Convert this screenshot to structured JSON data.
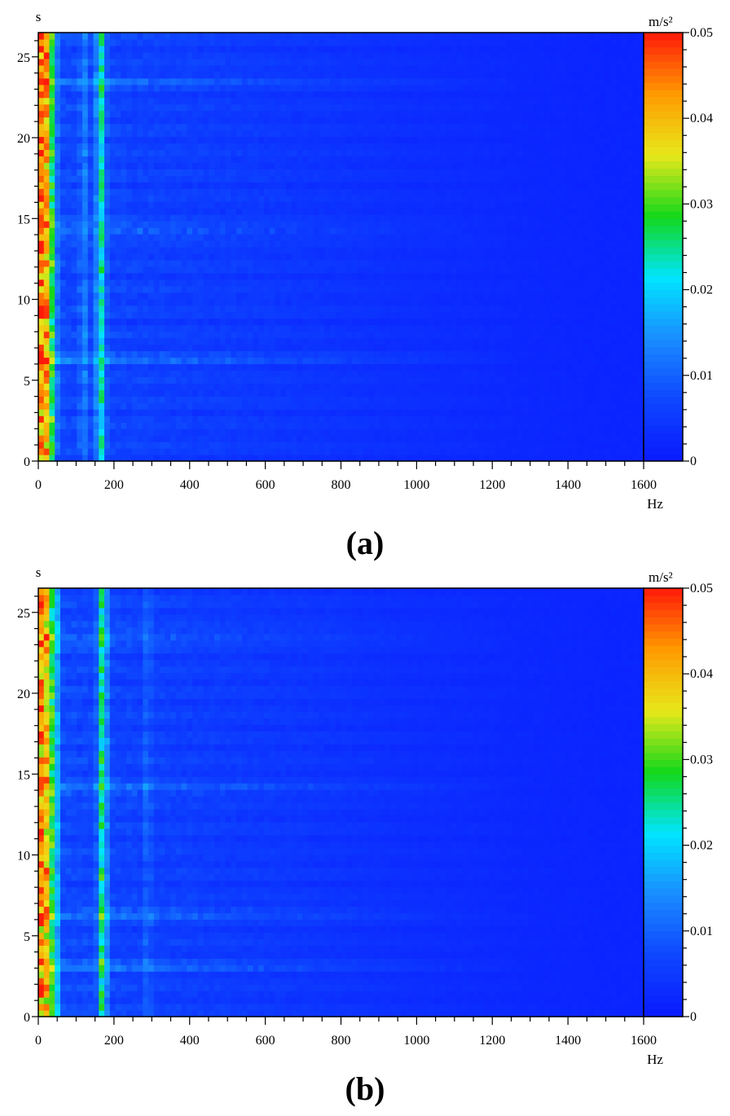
{
  "colors": {
    "colormap": [
      "#0a1aff",
      "#0e45ff",
      "#1a8cff",
      "#00e5ff",
      "#13d81a",
      "#e8e81a",
      "#ff9a00",
      "#ff1a0a"
    ],
    "background": "#ffffff",
    "axis": "#000000"
  },
  "chart_data": [
    {
      "type": "heatmap",
      "panel_label": "(a)",
      "xlabel": "Hz",
      "ylabel": "s",
      "colorbar_unit": "m/s²",
      "x_ticks": [
        "0",
        "200",
        "400",
        "600",
        "800",
        "1000",
        "1200",
        "1400",
        "1600"
      ],
      "y_ticks": [
        "0",
        "5",
        "10",
        "15",
        "20",
        "25"
      ],
      "colorbar_ticks": [
        "0",
        "0.01",
        "0.02",
        "0.03",
        "0.04",
        "0.05"
      ],
      "xlim": [
        0,
        1600
      ],
      "ylim": [
        0,
        26.5
      ],
      "clim": [
        0,
        0.05
      ],
      "features": [
        {
          "kind": "band",
          "freq_hz": 10,
          "width_hz": 12,
          "level": 0.045
        },
        {
          "kind": "band",
          "freq_hz": 25,
          "width_hz": 12,
          "level": 0.028
        },
        {
          "kind": "band",
          "freq_hz": 40,
          "width_hz": 10,
          "level": 0.016
        },
        {
          "kind": "band",
          "freq_hz": 165,
          "width_hz": 12,
          "level": 0.022
        },
        {
          "kind": "band",
          "freq_hz": 120,
          "width_hz": 10,
          "level": 0.008
        },
        {
          "kind": "row",
          "time_s": 6.3,
          "level": 0.008
        },
        {
          "kind": "row",
          "time_s": 14.3,
          "level": 0.008
        },
        {
          "kind": "row",
          "time_s": 23.5,
          "level": 0.006
        }
      ]
    },
    {
      "type": "heatmap",
      "panel_label": "(b)",
      "xlabel": "Hz",
      "ylabel": "s",
      "colorbar_unit": "m/s²",
      "x_ticks": [
        "0",
        "200",
        "400",
        "600",
        "800",
        "1000",
        "1200",
        "1400",
        "1600"
      ],
      "y_ticks": [
        "0",
        "5",
        "10",
        "15",
        "20",
        "25"
      ],
      "colorbar_ticks": [
        "0",
        "0.01",
        "0.02",
        "0.03",
        "0.04",
        "0.05"
      ],
      "xlim": [
        0,
        1600
      ],
      "ylim": [
        0,
        26.5
      ],
      "clim": [
        0,
        0.05
      ],
      "features": [
        {
          "kind": "band",
          "freq_hz": 10,
          "width_hz": 12,
          "level": 0.046
        },
        {
          "kind": "band",
          "freq_hz": 28,
          "width_hz": 12,
          "level": 0.03
        },
        {
          "kind": "band",
          "freq_hz": 45,
          "width_hz": 10,
          "level": 0.016
        },
        {
          "kind": "band",
          "freq_hz": 170,
          "width_hz": 12,
          "level": 0.024
        },
        {
          "kind": "band",
          "freq_hz": 290,
          "width_hz": 8,
          "level": 0.007
        },
        {
          "kind": "row",
          "time_s": 3.1,
          "level": 0.007
        },
        {
          "kind": "row",
          "time_s": 6.4,
          "level": 0.008
        },
        {
          "kind": "row",
          "time_s": 14.1,
          "level": 0.008
        },
        {
          "kind": "row",
          "time_s": 23.5,
          "level": 0.007
        }
      ]
    }
  ]
}
